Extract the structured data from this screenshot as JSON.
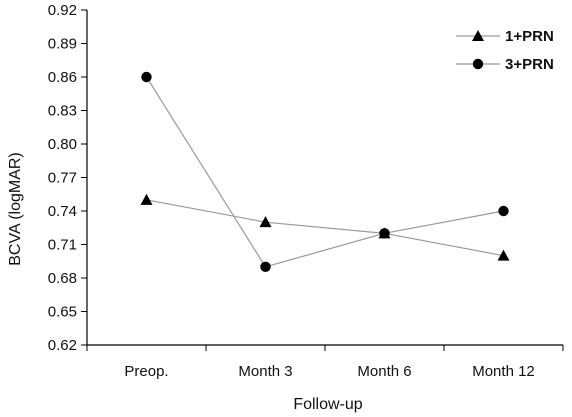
{
  "chart_data": {
    "type": "line",
    "title": "",
    "xlabel": "Follow-up",
    "ylabel": "BCVA (logMAR)",
    "categories": [
      "Preop.",
      "Month 3",
      "Month 6",
      "Month 12"
    ],
    "ylim": [
      0.62,
      0.92
    ],
    "yticks": [
      "0.62",
      "0.65",
      "0.68",
      "0.71",
      "0.74",
      "0.77",
      "0.80",
      "0.83",
      "0.86",
      "0.89",
      "0.92"
    ],
    "grid": false,
    "legend_position": "top-right",
    "series": [
      {
        "name": "1+PRN",
        "marker": "triangle",
        "values": [
          0.75,
          0.73,
          0.72,
          0.7
        ]
      },
      {
        "name": "3+PRN",
        "marker": "circle",
        "values": [
          0.86,
          0.69,
          0.72,
          0.74
        ]
      }
    ],
    "colors": {
      "line": "#9a9a9a",
      "marker": "#000000",
      "axis": "#000000"
    }
  }
}
